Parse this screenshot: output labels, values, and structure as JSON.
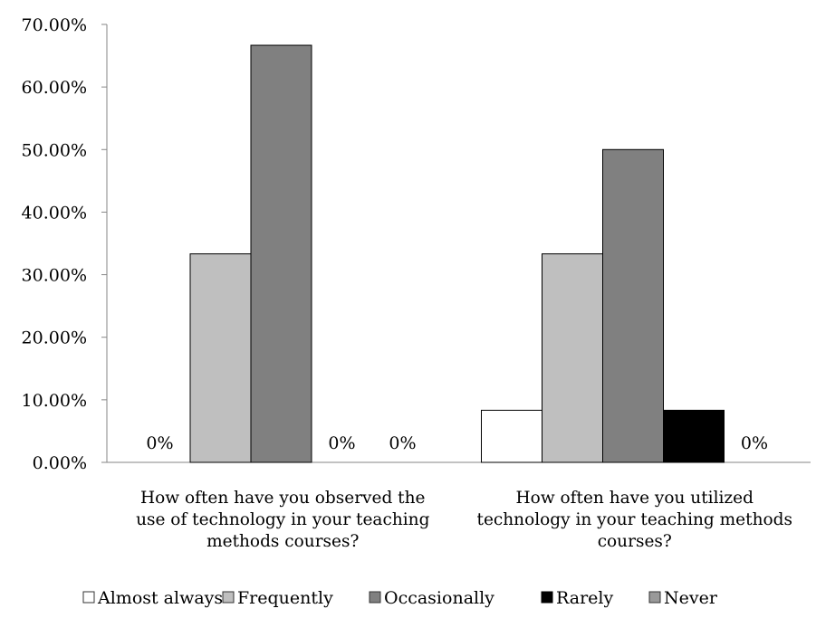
{
  "chart_data": {
    "type": "bar",
    "categories": [
      "How often have you observed the use of technology in your teaching methods courses?",
      "How often have you utilized technology in your teaching methods courses?"
    ],
    "category_lines": [
      [
        "How often have you observed the",
        "use of technology in your teaching",
        "methods courses?"
      ],
      [
        "How often have you utilized",
        "technology in your teaching methods",
        "courses?"
      ]
    ],
    "series": [
      {
        "name": "Almost always",
        "values": [
          0,
          8.33
        ],
        "color": "#ffffff",
        "labels": [
          "0%",
          ""
        ]
      },
      {
        "name": "Frequently",
        "values": [
          33.33,
          33.33
        ],
        "color": "#bfbfbf",
        "labels": [
          "",
          ""
        ]
      },
      {
        "name": "Occasionally",
        "values": [
          66.67,
          50.0
        ],
        "color": "#808080",
        "labels": [
          "",
          ""
        ]
      },
      {
        "name": "Rarely",
        "values": [
          0,
          8.33
        ],
        "color": "#000000",
        "labels": [
          "0%",
          ""
        ]
      },
      {
        "name": "Never",
        "values": [
          0,
          0
        ],
        "color": "#999999",
        "labels": [
          "0%",
          "0%"
        ]
      }
    ],
    "y_ticks": [
      "0.00%",
      "10.00%",
      "20.00%",
      "30.00%",
      "40.00%",
      "50.00%",
      "60.00%",
      "70.00%"
    ],
    "ylim": [
      0,
      70
    ],
    "grid": false,
    "legend_position": "bottom"
  }
}
